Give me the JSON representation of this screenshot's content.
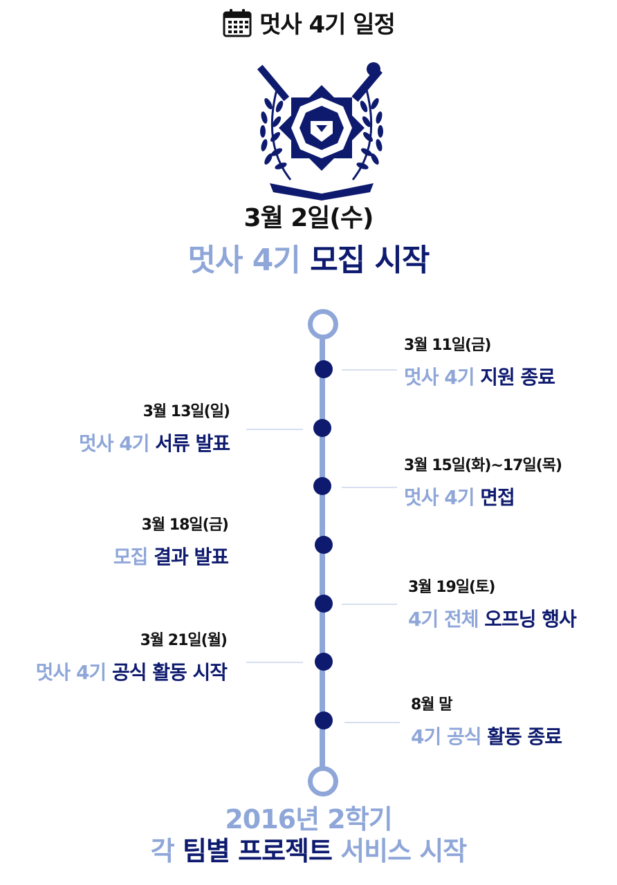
{
  "header": {
    "icon": "calendar-icon",
    "title": "멋사 4기 일정"
  },
  "emblem": {
    "icon": "university-lion-emblem"
  },
  "start": {
    "date": "3월 2일(수)",
    "event_light": "멋사 4기",
    "event_dark": "모집 시작"
  },
  "colors": {
    "light": "#8ea6d8",
    "dark": "#0d1a6e"
  },
  "events": [
    {
      "date": "3월 11일(금)",
      "light": "멋사 4기",
      "dark": "지원 종료"
    },
    {
      "date": "3월 13일(일)",
      "light": "멋사 4기",
      "dark": "서류 발표"
    },
    {
      "date": "3월 15일(화)~17일(목)",
      "light": "멋사 4기",
      "dark": "면접"
    },
    {
      "date": "3월 18일(금)",
      "light": "모집",
      "dark": "결과 발표"
    },
    {
      "date": "3월 19일(토)",
      "light": "4기 전체",
      "dark": "오프닝 행사"
    },
    {
      "date": "3월 21일(월)",
      "light": "멋사 4기",
      "dark": "공식 활동 시작"
    },
    {
      "date": "8월 말",
      "light": "4기 공식",
      "dark": "활동 종료"
    }
  ],
  "footer": {
    "line1": "2016년 2학기",
    "line2_light_a": "각",
    "line2_dark": "팀별 프로젝트",
    "line2_light_b": "서비스 시작"
  }
}
